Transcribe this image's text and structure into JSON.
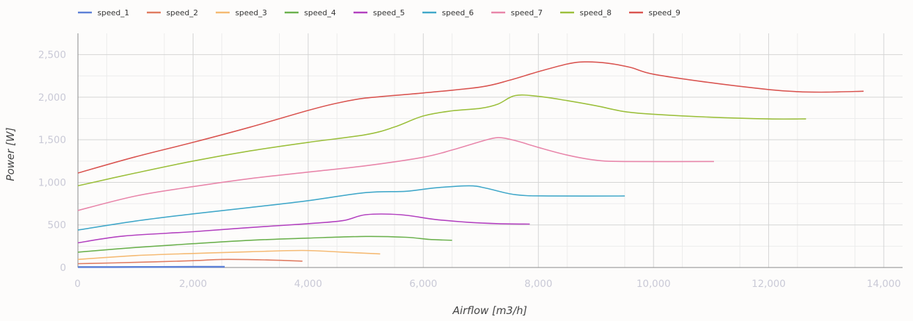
{
  "chart_data": {
    "type": "line",
    "xlabel": "Airflow [m3/h]",
    "ylabel": "Power [W]",
    "xlim": [
      0,
      14000
    ],
    "ylim": [
      0,
      2750
    ],
    "x_ticks": [
      "0",
      "2,000",
      "4,000",
      "6,000",
      "8,000",
      "10,000",
      "12,000",
      "14,000"
    ],
    "y_ticks": [
      "0",
      "500",
      "1,000",
      "1,500",
      "2,000",
      "2,500"
    ],
    "legend_position": "top-left",
    "grid": true,
    "series": [
      {
        "name": "speed_1",
        "color": "#5b7fd6",
        "points": [
          [
            0,
            5
          ],
          [
            1000,
            6
          ],
          [
            2000,
            8
          ],
          [
            2550,
            8
          ]
        ]
      },
      {
        "name": "speed_2",
        "color": "#e07a5f",
        "points": [
          [
            0,
            45
          ],
          [
            1000,
            60
          ],
          [
            2000,
            80
          ],
          [
            2500,
            95
          ],
          [
            3200,
            90
          ],
          [
            3900,
            75
          ]
        ]
      },
      {
        "name": "speed_3",
        "color": "#f5b971",
        "points": [
          [
            0,
            95
          ],
          [
            1000,
            140
          ],
          [
            2000,
            165
          ],
          [
            3000,
            185
          ],
          [
            3900,
            200
          ],
          [
            4600,
            180
          ],
          [
            5250,
            160
          ]
        ]
      },
      {
        "name": "speed_4",
        "color": "#6ab04c",
        "points": [
          [
            0,
            180
          ],
          [
            1000,
            235
          ],
          [
            2000,
            280
          ],
          [
            3000,
            320
          ],
          [
            4000,
            345
          ],
          [
            5000,
            365
          ],
          [
            5700,
            355
          ],
          [
            6100,
            330
          ],
          [
            6500,
            320
          ]
        ]
      },
      {
        "name": "speed_5",
        "color": "#b23fbf",
        "points": [
          [
            0,
            290
          ],
          [
            800,
            370
          ],
          [
            2000,
            420
          ],
          [
            3000,
            470
          ],
          [
            4000,
            515
          ],
          [
            4600,
            550
          ],
          [
            5000,
            620
          ],
          [
            5600,
            620
          ],
          [
            6200,
            565
          ],
          [
            6800,
            530
          ],
          [
            7300,
            515
          ],
          [
            7850,
            510
          ]
        ]
      },
      {
        "name": "speed_6",
        "color": "#3fa7c9",
        "points": [
          [
            0,
            440
          ],
          [
            1000,
            545
          ],
          [
            2000,
            630
          ],
          [
            3000,
            705
          ],
          [
            4000,
            785
          ],
          [
            5000,
            880
          ],
          [
            5700,
            895
          ],
          [
            6200,
            935
          ],
          [
            6800,
            960
          ],
          [
            7100,
            930
          ],
          [
            7600,
            855
          ],
          [
            8200,
            840
          ],
          [
            9500,
            840
          ]
        ]
      },
      {
        "name": "speed_7",
        "color": "#e884a9",
        "points": [
          [
            0,
            670
          ],
          [
            1000,
            840
          ],
          [
            2000,
            950
          ],
          [
            3000,
            1045
          ],
          [
            4000,
            1120
          ],
          [
            5000,
            1195
          ],
          [
            6000,
            1295
          ],
          [
            6500,
            1380
          ],
          [
            7000,
            1480
          ],
          [
            7300,
            1525
          ],
          [
            7600,
            1490
          ],
          [
            8000,
            1410
          ],
          [
            8500,
            1320
          ],
          [
            9000,
            1260
          ],
          [
            9500,
            1245
          ],
          [
            11050,
            1245
          ]
        ]
      },
      {
        "name": "speed_8",
        "color": "#9bbf3a",
        "points": [
          [
            0,
            960
          ],
          [
            1000,
            1110
          ],
          [
            2000,
            1250
          ],
          [
            3000,
            1370
          ],
          [
            4000,
            1470
          ],
          [
            5000,
            1560
          ],
          [
            5500,
            1650
          ],
          [
            6000,
            1780
          ],
          [
            6500,
            1840
          ],
          [
            7000,
            1870
          ],
          [
            7300,
            1920
          ],
          [
            7600,
            2020
          ],
          [
            8000,
            2010
          ],
          [
            8500,
            1960
          ],
          [
            9000,
            1900
          ],
          [
            9500,
            1830
          ],
          [
            10000,
            1800
          ],
          [
            11000,
            1765
          ],
          [
            12000,
            1745
          ],
          [
            12650,
            1745
          ]
        ]
      },
      {
        "name": "speed_9",
        "color": "#d9534f",
        "points": [
          [
            0,
            1110
          ],
          [
            1000,
            1300
          ],
          [
            2000,
            1470
          ],
          [
            3000,
            1650
          ],
          [
            4000,
            1845
          ],
          [
            4500,
            1930
          ],
          [
            5000,
            1990
          ],
          [
            6000,
            2050
          ],
          [
            7000,
            2120
          ],
          [
            7500,
            2200
          ],
          [
            8000,
            2300
          ],
          [
            8500,
            2390
          ],
          [
            8800,
            2415
          ],
          [
            9200,
            2400
          ],
          [
            9600,
            2350
          ],
          [
            10000,
            2270
          ],
          [
            11000,
            2170
          ],
          [
            12000,
            2090
          ],
          [
            12500,
            2065
          ],
          [
            13000,
            2060
          ],
          [
            13650,
            2070
          ]
        ]
      }
    ]
  }
}
